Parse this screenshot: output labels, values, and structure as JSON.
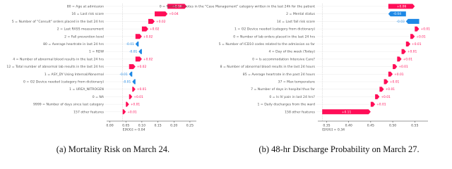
{
  "chart_data": [
    {
      "type": "waterfall",
      "categories": [
        "80 = Age at admission",
        "16 = Last risk score",
        "5 = Number of \"Consult\" orders placed in the last 24 hrs",
        "2 = Last RASS measurement",
        "2 = Fall prevention level",
        "80 = Average heartrate in last 24 hrs",
        "1 = RDW",
        "4 = Number of abnormal blood results in the last 24 hrs",
        "12 = Total number of abnormal lab results in the last 24 hrs",
        "1 = ASY_DY Using Internal/Abnormal",
        "0 = O2 Device needed (category from dictionary)",
        "1 = UREA_NITROGEN",
        "0 = NA",
        "9999 = Number of days since last category",
        "157 other features"
      ],
      "values": [
        0.06,
        0.04,
        0.02,
        0.02,
        0.02,
        -0.01,
        -0.01,
        0.02,
        0.02,
        -0.01,
        -0.01,
        0.01,
        0.01,
        0.01,
        0.01
      ],
      "value_labels": [
        "+0.06",
        "+0.04",
        "+0.02",
        "+0.02",
        "+0.02",
        "-0.01",
        "-0.01",
        "+0.02",
        "+0.02",
        "-0.01",
        "-0.01",
        "+0.01",
        "+0.01",
        "+0.01",
        "+0.01"
      ],
      "base_value": 0.04,
      "base_label": "E[f(X)] = 0.04",
      "xlim": [
        -0.01,
        0.27
      ],
      "xticks": [
        {
          "value": 0,
          "label": "0.00"
        },
        0.05,
        {
          "value": 0.1,
          "label": "0.10"
        },
        0.15,
        {
          "value": 0.2,
          "label": "0.20"
        },
        0.25
      ],
      "positive_color": "#ff0d57",
      "negative_color": "#1e88e5",
      "caption": "(a) Mortality Risk on March 24."
    },
    {
      "type": "waterfall",
      "categories": [
        "0 = Number of notes in the \"Case Management\" category written in the last 24h for the patient",
        "2 = Mental status",
        "14 = Last fall risk score",
        "1 = O2 Device needed (category from dictionary)",
        "0 = Number of lab orders placed in the last 24 hrs",
        "5 = Number of ICD10 codes related to the admission so far",
        "4 = Day of the week (Today)",
        "0 = Is accommodation Intensive Care?",
        "8 = Number of abnormal blood results in the last 24 hours",
        "85 = Average heartrate in the past 24 hours",
        "37 = Max temperature",
        "7 = Number of days in hospital thus far",
        "0 = Is IV pain in last 24 hrs?",
        "1 = Daily discharges from the ward",
        "158 other features"
      ],
      "values": [
        0.06,
        -0.04,
        -0.03,
        0.01,
        0.01,
        0.01,
        0.01,
        0.01,
        0.01,
        0.01,
        0.01,
        0.01,
        0.01,
        0.01,
        0.11
      ],
      "value_labels": [
        "+0.06",
        "-0.04",
        "-0.03",
        "+0.01",
        "+0.01",
        "+0.01",
        "+0.01",
        "+0.01",
        "+0.01",
        "+0.01",
        "+0.01",
        "+0.01",
        "+0.01",
        "+0.01",
        "+0.11"
      ],
      "base_value": 0.34,
      "base_label": "E[f(X)] = 0.34",
      "xlim": [
        0.33,
        0.58
      ],
      "xticks": [
        0.35,
        {
          "value": 0.4,
          "label": "0.40"
        },
        0.45,
        {
          "value": 0.5,
          "label": "0.50"
        },
        0.55
      ],
      "positive_color": "#ff0d57",
      "negative_color": "#1e88e5",
      "caption": "(b) 48-hr Discharge Probability on March 27."
    }
  ]
}
